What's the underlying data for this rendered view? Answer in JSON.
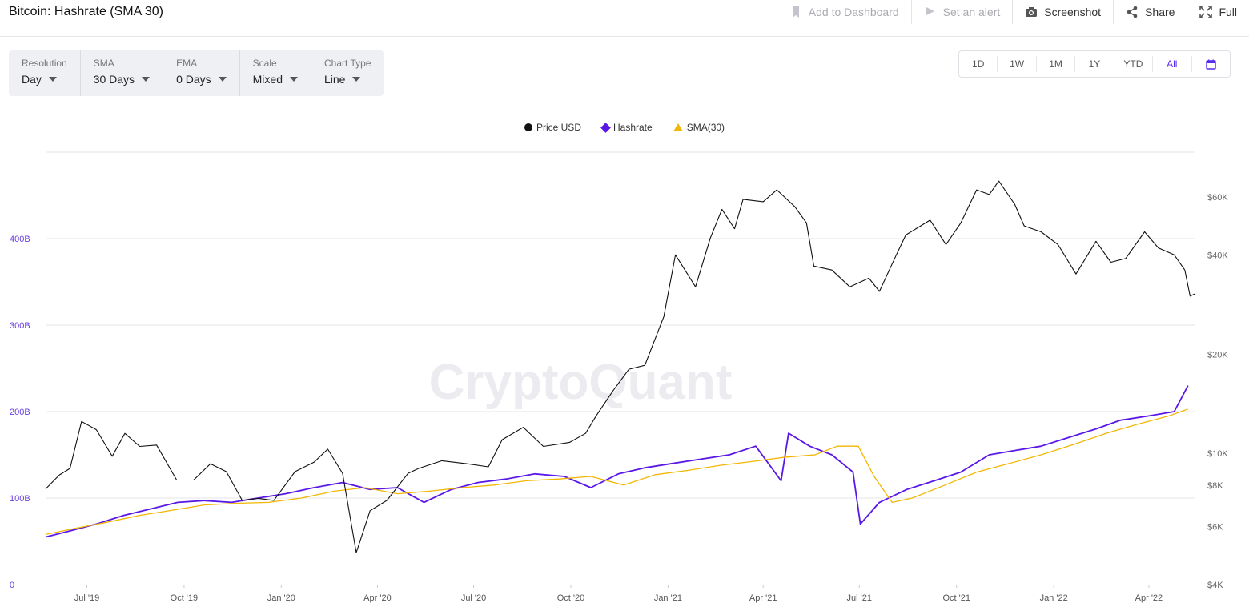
{
  "header": {
    "title": "Bitcoin: Hashrate (SMA 30)",
    "actions": [
      {
        "label": "Add to Dashboard",
        "icon": "bookmark-icon",
        "enabled": false
      },
      {
        "label": "Set an alert",
        "icon": "alert-icon",
        "enabled": false
      },
      {
        "label": "Screenshot",
        "icon": "camera-icon",
        "enabled": true
      },
      {
        "label": "Share",
        "icon": "share-icon",
        "enabled": true
      },
      {
        "label": "Full",
        "icon": "expand-icon",
        "enabled": true
      }
    ]
  },
  "controls": [
    {
      "label": "Resolution",
      "value": "Day"
    },
    {
      "label": "SMA",
      "value": "30 Days"
    },
    {
      "label": "EMA",
      "value": "0 Days"
    },
    {
      "label": "Scale",
      "value": "Mixed"
    },
    {
      "label": "Chart Type",
      "value": "Line"
    }
  ],
  "ranges": [
    "1D",
    "1W",
    "1M",
    "1Y",
    "YTD",
    "All"
  ],
  "active_range": "All",
  "watermark": "CryptoQuant",
  "colors": {
    "price": "#111111",
    "hashrate": "#5a18e8",
    "sma": "#f2b705",
    "left_axis": "#6a3fe0",
    "grid": "#e4e4e4"
  },
  "chart_data": {
    "type": "line",
    "legend": [
      "Price USD",
      "Hashrate",
      "SMA(30)"
    ],
    "legend_position": "top-center",
    "x_ticks": [
      "Jul '19",
      "Oct '19",
      "Jan '20",
      "Apr '20",
      "Jul '20",
      "Oct '20",
      "Jan '21",
      "Apr '21",
      "Jul '21",
      "Oct '21",
      "Jan '22",
      "Apr '22"
    ],
    "x_tick_dates": [
      "2019-07-01",
      "2019-10-01",
      "2020-01-01",
      "2020-04-01",
      "2020-07-01",
      "2020-10-01",
      "2021-01-01",
      "2021-04-01",
      "2021-07-01",
      "2021-10-01",
      "2022-01-01",
      "2022-04-01"
    ],
    "x_range": [
      "2019-05-23",
      "2022-05-15"
    ],
    "left_axis": {
      "ticks": [
        "0",
        "100B",
        "200B",
        "300B",
        "400B"
      ],
      "tick_values": [
        0,
        100,
        200,
        300,
        400
      ],
      "range": [
        0,
        500
      ],
      "unit": "B",
      "scale": "linear"
    },
    "right_axis": {
      "ticks": [
        "$4K",
        "$6K",
        "$8K",
        "$10K",
        "$20K",
        "$40K",
        "$60K"
      ],
      "tick_values": [
        4000,
        6000,
        8000,
        10000,
        20000,
        40000,
        60000
      ],
      "range": [
        4000,
        82000
      ],
      "scale": "log"
    },
    "series": [
      {
        "name": "Price USD",
        "axis": "right",
        "x": [
          "2019-05-23",
          "2019-06-05",
          "2019-06-15",
          "2019-06-26",
          "2019-07-10",
          "2019-07-25",
          "2019-08-06",
          "2019-08-20",
          "2019-09-05",
          "2019-09-24",
          "2019-10-10",
          "2019-10-26",
          "2019-11-10",
          "2019-11-25",
          "2019-12-10",
          "2019-12-25",
          "2020-01-14",
          "2020-02-01",
          "2020-02-14",
          "2020-02-28",
          "2020-03-12",
          "2020-03-25",
          "2020-04-10",
          "2020-04-30",
          "2020-05-10",
          "2020-06-01",
          "2020-06-25",
          "2020-07-15",
          "2020-07-28",
          "2020-08-17",
          "2020-09-05",
          "2020-09-30",
          "2020-10-15",
          "2020-10-25",
          "2020-11-10",
          "2020-11-25",
          "2020-12-10",
          "2020-12-28",
          "2021-01-08",
          "2021-01-27",
          "2021-02-10",
          "2021-02-21",
          "2021-03-05",
          "2021-03-13",
          "2021-04-01",
          "2021-04-14",
          "2021-05-01",
          "2021-05-12",
          "2021-05-19",
          "2021-06-05",
          "2021-06-22",
          "2021-07-10",
          "2021-07-20",
          "2021-08-05",
          "2021-08-14",
          "2021-09-06",
          "2021-09-21",
          "2021-10-05",
          "2021-10-20",
          "2021-11-01",
          "2021-11-10",
          "2021-11-25",
          "2021-12-04",
          "2021-12-20",
          "2022-01-05",
          "2022-01-22",
          "2022-02-10",
          "2022-02-24",
          "2022-03-10",
          "2022-03-28",
          "2022-04-10",
          "2022-04-25",
          "2022-05-05",
          "2022-05-10",
          "2022-05-15"
        ],
        "y": [
          7800,
          8600,
          9000,
          12500,
          11800,
          9800,
          11500,
          10500,
          10600,
          8300,
          8300,
          9300,
          8800,
          7200,
          7300,
          7200,
          8800,
          9400,
          10300,
          8700,
          5000,
          6700,
          7200,
          8700,
          9000,
          9500,
          9300,
          9100,
          11000,
          12000,
          10500,
          10800,
          11500,
          13000,
          15500,
          18000,
          18500,
          26000,
          40000,
          32000,
          45000,
          55000,
          48000,
          59000,
          58000,
          63000,
          56000,
          50000,
          37000,
          36000,
          32000,
          34000,
          31000,
          40000,
          46000,
          51000,
          43000,
          50000,
          63000,
          61000,
          67000,
          57000,
          49000,
          47000,
          43000,
          35000,
          44000,
          38000,
          39000,
          47000,
          42000,
          40000,
          36000,
          30000,
          30500
        ]
      },
      {
        "name": "Hashrate",
        "axis": "left",
        "x": [
          "2019-05-23",
          "2019-06-15",
          "2019-07-10",
          "2019-08-05",
          "2019-09-01",
          "2019-09-25",
          "2019-10-20",
          "2019-11-15",
          "2019-12-10",
          "2020-01-05",
          "2020-02-01",
          "2020-02-28",
          "2020-03-25",
          "2020-04-20",
          "2020-05-15",
          "2020-06-10",
          "2020-07-05",
          "2020-08-01",
          "2020-08-28",
          "2020-09-25",
          "2020-10-20",
          "2020-11-15",
          "2020-12-10",
          "2021-01-05",
          "2021-02-01",
          "2021-02-28",
          "2021-03-25",
          "2021-04-18",
          "2021-04-25",
          "2021-05-15",
          "2021-06-05",
          "2021-06-25",
          "2021-07-02",
          "2021-07-20",
          "2021-08-15",
          "2021-09-10",
          "2021-10-05",
          "2021-11-01",
          "2021-11-25",
          "2021-12-20",
          "2022-01-15",
          "2022-02-10",
          "2022-03-05",
          "2022-04-01",
          "2022-04-25",
          "2022-05-08"
        ],
        "y": [
          55,
          62,
          70,
          80,
          88,
          95,
          97,
          95,
          100,
          105,
          112,
          118,
          110,
          112,
          95,
          110,
          118,
          122,
          128,
          125,
          112,
          128,
          135,
          140,
          145,
          150,
          160,
          120,
          175,
          160,
          150,
          130,
          70,
          95,
          110,
          120,
          130,
          150,
          155,
          160,
          170,
          180,
          190,
          195,
          200,
          230
        ]
      },
      {
        "name": "SMA(30)",
        "axis": "left",
        "x": [
          "2019-05-23",
          "2019-06-20",
          "2019-07-20",
          "2019-08-20",
          "2019-09-20",
          "2019-10-20",
          "2019-11-20",
          "2019-12-20",
          "2020-01-20",
          "2020-02-20",
          "2020-03-20",
          "2020-04-20",
          "2020-05-20",
          "2020-06-20",
          "2020-07-20",
          "2020-08-20",
          "2020-09-20",
          "2020-10-20",
          "2020-11-20",
          "2020-12-20",
          "2021-01-20",
          "2021-02-20",
          "2021-03-20",
          "2021-04-20",
          "2021-05-20",
          "2021-06-10",
          "2021-06-30",
          "2021-07-15",
          "2021-08-01",
          "2021-08-20",
          "2021-09-20",
          "2021-10-20",
          "2021-11-20",
          "2021-12-20",
          "2022-01-20",
          "2022-02-20",
          "2022-03-20",
          "2022-04-20",
          "2022-05-08"
        ],
        "y": [
          58,
          65,
          72,
          80,
          86,
          92,
          94,
          95,
          100,
          108,
          112,
          105,
          108,
          112,
          115,
          120,
          122,
          125,
          115,
          127,
          132,
          138,
          142,
          147,
          150,
          160,
          160,
          125,
          95,
          100,
          115,
          130,
          140,
          150,
          162,
          175,
          185,
          195,
          203
        ]
      }
    ]
  }
}
